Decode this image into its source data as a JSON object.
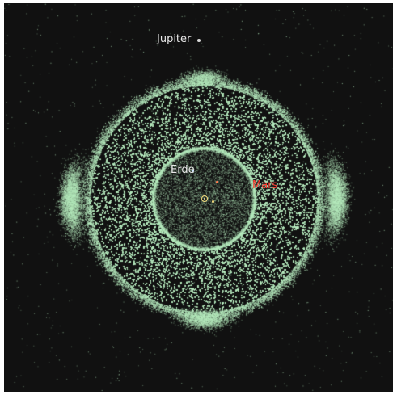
{
  "labels": {
    "jupiter": "Jupiter",
    "earth": "Erde",
    "mars": "Mars"
  },
  "colors": {
    "background": "#111111",
    "asteroid": "#b8ecc0",
    "jupiter_label": "#e8e8e8",
    "earth_label": "#e8e8e8",
    "mars_label": "#ff3b30",
    "sun": "#f2d97a"
  },
  "icons": {
    "sun": "sun-icon",
    "jupiter": "jupiter-icon",
    "earth": "earth-icon",
    "mars": "mars-icon"
  }
}
